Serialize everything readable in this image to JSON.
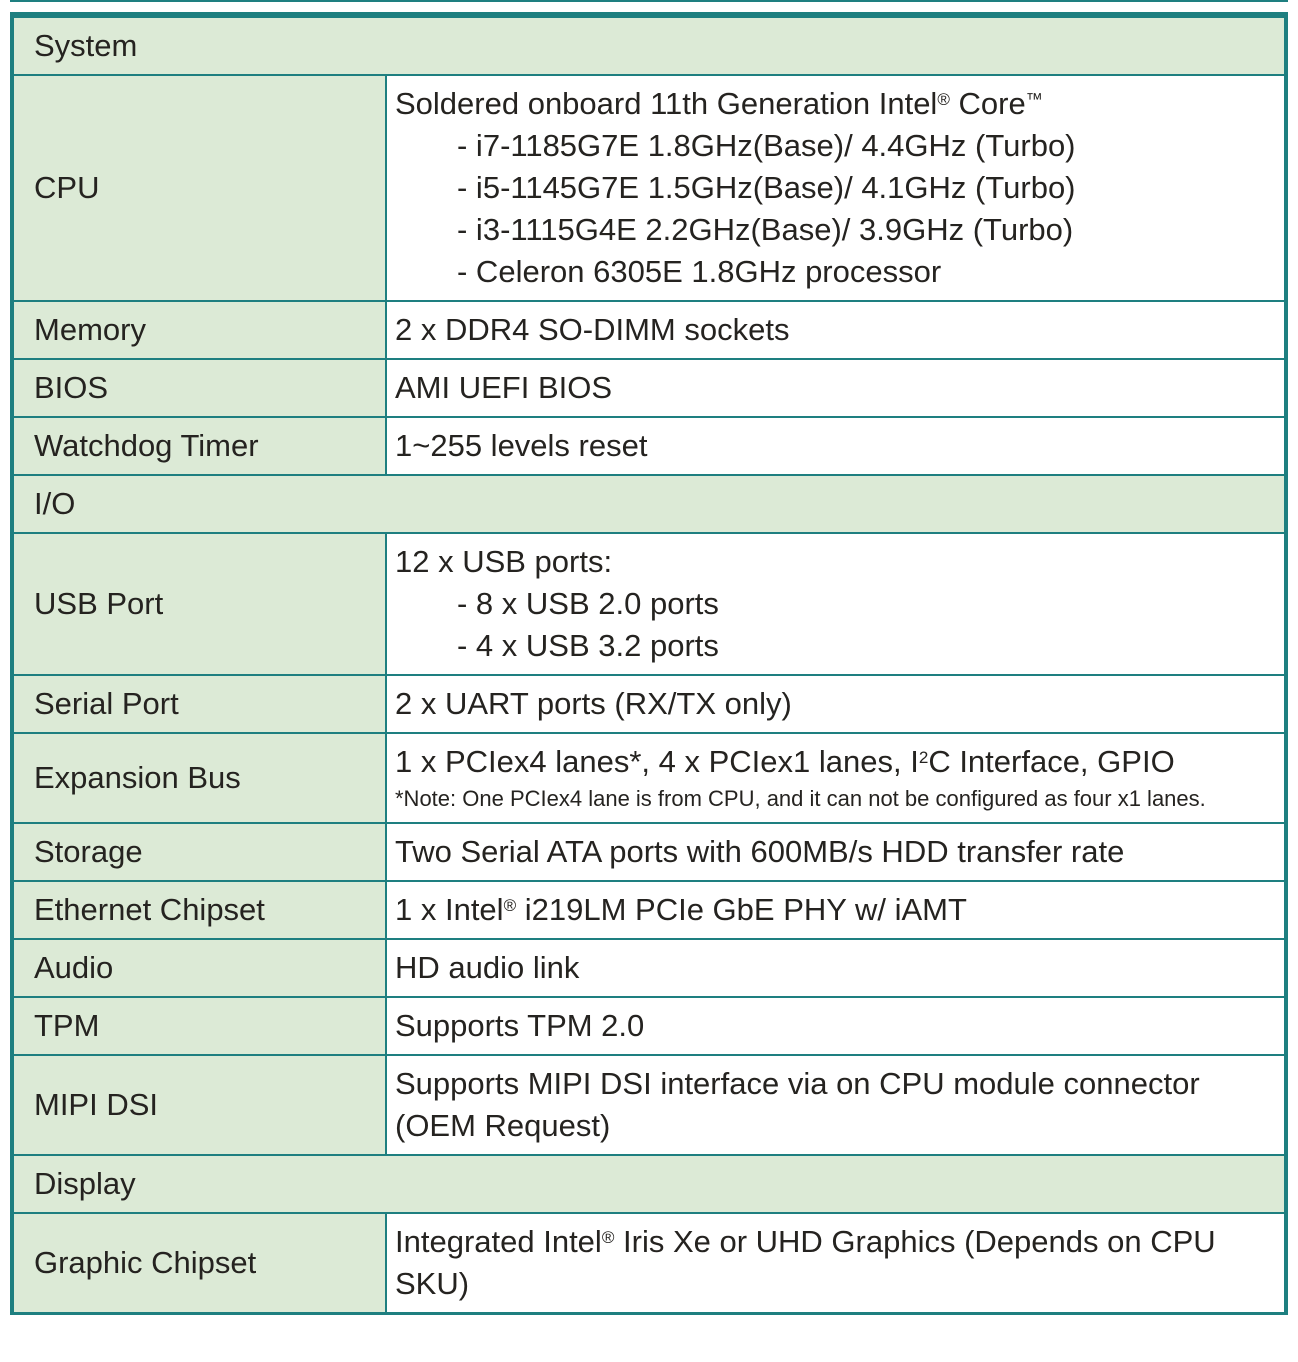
{
  "colors": {
    "border": "#1e7f80",
    "section_bg": "#dcead6",
    "label_bg": "#dcead6",
    "value_bg": "#ffffff",
    "text": "#252320"
  },
  "table": {
    "sections": [
      {
        "title": "System",
        "rows": [
          {
            "label": "CPU",
            "lines": [
              {
                "t": "Soldered onboard 11th Generation Intel{R} Core{TM}"
              },
              {
                "t": "- i7-1185G7E 1.8GHz(Base)/ 4.4GHz (Turbo)",
                "indent": true
              },
              {
                "t": "- i5-1145G7E 1.5GHz(Base)/ 4.1GHz (Turbo)",
                "indent": true
              },
              {
                "t": "- i3-1115G4E 2.2GHz(Base)/ 3.9GHz (Turbo)",
                "indent": true
              },
              {
                "t": "- Celeron 6305E 1.8GHz processor",
                "indent": true
              }
            ]
          },
          {
            "label": "Memory",
            "lines": [
              {
                "t": "2 x DDR4 SO-DIMM sockets"
              }
            ]
          },
          {
            "label": "BIOS",
            "lines": [
              {
                "t": "AMI UEFI BIOS"
              }
            ]
          },
          {
            "label": "Watchdog Timer",
            "lines": [
              {
                "t": "1~255 levels reset"
              }
            ]
          }
        ]
      },
      {
        "title": "I/O",
        "rows": [
          {
            "label": "USB Port",
            "lines": [
              {
                "t": "12 x USB ports:"
              },
              {
                "t": "- 8 x USB 2.0 ports",
                "indent": true
              },
              {
                "t": "- 4 x USB 3.2 ports",
                "indent": true
              }
            ]
          },
          {
            "label": "Serial Port",
            "lines": [
              {
                "t": "2 x UART ports (RX/TX only)"
              }
            ]
          },
          {
            "label": "Expansion Bus",
            "lines": [
              {
                "t": "1 x PCIex4 lanes*, 4 x PCIex1 lanes, I{2}C Interface, GPIO"
              },
              {
                "t": "*Note: One PCIex4 lane is from CPU, and it can not be configured as four x1 lanes.",
                "note": true
              }
            ]
          },
          {
            "label": "Storage",
            "lines": [
              {
                "t": "Two Serial ATA ports with 600MB/s HDD transfer rate"
              }
            ]
          },
          {
            "label": "Ethernet Chipset",
            "lines": [
              {
                "t": "1 x Intel{R} i219LM PCIe GbE PHY w/ iAMT"
              }
            ]
          },
          {
            "label": "Audio",
            "lines": [
              {
                "t": "HD audio link"
              }
            ]
          },
          {
            "label": "TPM",
            "lines": [
              {
                "t": "Supports TPM 2.0"
              }
            ]
          },
          {
            "label": "MIPI DSI",
            "lines": [
              {
                "t": "Supports MIPI DSI interface via on CPU module connector (OEM Request)"
              }
            ]
          }
        ]
      },
      {
        "title": "Display",
        "rows": [
          {
            "label": "Graphic Chipset",
            "lines": [
              {
                "t": "Integrated Intel{R} Iris Xe or UHD Graphics (Depends on CPU SKU)"
              }
            ]
          }
        ]
      }
    ]
  }
}
